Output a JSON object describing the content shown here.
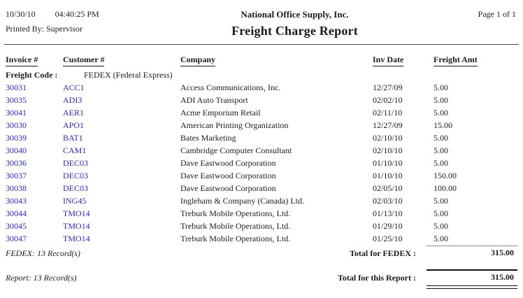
{
  "header": {
    "date": "10/30/10",
    "time": "04:40:25 PM",
    "printed_by": "Printed By: Supervisor",
    "company_name": "National Office Supply, Inc.",
    "report_title": "Freight Charge Report",
    "page_info": "Page 1 of 1"
  },
  "colors": {
    "link_blue": "#2828cd",
    "text": "#1b1b1b",
    "group_total_rule": "#8a8a8a"
  },
  "table": {
    "columns": [
      "Invoice #",
      "Customer #",
      "Company",
      "Inv Date",
      "Freight Amt"
    ],
    "group_header": {
      "label": "Freight Code :",
      "value": "FEDEX (Federal Express)"
    },
    "rows": [
      {
        "invoice": "30031",
        "customer": "ACC1",
        "company": "Access Communications, Inc.",
        "inv_date": "12/27/09",
        "amount": "5.00"
      },
      {
        "invoice": "30035",
        "customer": "ADI3",
        "company": "ADI Auto Transport",
        "inv_date": "02/02/10",
        "amount": "5.00"
      },
      {
        "invoice": "30041",
        "customer": "AER1",
        "company": "Acme Emporium Retail",
        "inv_date": "02/11/10",
        "amount": "5.00"
      },
      {
        "invoice": "30030",
        "customer": "APO1",
        "company": "American Printing Organization",
        "inv_date": "12/27/09",
        "amount": "15.00"
      },
      {
        "invoice": "30039",
        "customer": "BAT1",
        "company": "Bates Marketing",
        "inv_date": "02/10/10",
        "amount": "5.00"
      },
      {
        "invoice": "30040",
        "customer": "CAM1",
        "company": "Cambridge Computer Consultant",
        "inv_date": "02/10/10",
        "amount": "5.00"
      },
      {
        "invoice": "30036",
        "customer": "DEC03",
        "company": "Dave Eastwood Corporation",
        "inv_date": "01/10/10",
        "amount": "5.00"
      },
      {
        "invoice": "30037",
        "customer": "DEC03",
        "company": "Dave Eastwood Corporation",
        "inv_date": "01/10/10",
        "amount": "150.00"
      },
      {
        "invoice": "30038",
        "customer": "DEC03",
        "company": "Dave Eastwood Corporation",
        "inv_date": "02/05/10",
        "amount": "100.00"
      },
      {
        "invoice": "30043",
        "customer": "ING45",
        "company": "Ingleham & Company (Canada) Ltd.",
        "inv_date": "02/03/10",
        "amount": "5.00"
      },
      {
        "invoice": "30044",
        "customer": "TMO14",
        "company": "Treburk Mobile Operations, Ltd.",
        "inv_date": "01/13/10",
        "amount": "5.00"
      },
      {
        "invoice": "30045",
        "customer": "TMO14",
        "company": "Treburk Mobile Operations, Ltd.",
        "inv_date": "01/29/10",
        "amount": "5.00"
      },
      {
        "invoice": "30047",
        "customer": "TMO14",
        "company": "Treburk Mobile Operations, Ltd.",
        "inv_date": "01/25/10",
        "amount": "5.00"
      }
    ]
  },
  "group_footer": {
    "records": "FEDEX: 13 Record(s)",
    "total_label": "Total for FEDEX :",
    "total_amount": "315.00"
  },
  "report_footer": {
    "records": "Report: 13 Record(s)",
    "total_label": "Total for this Report :",
    "total_amount": "315.00"
  }
}
